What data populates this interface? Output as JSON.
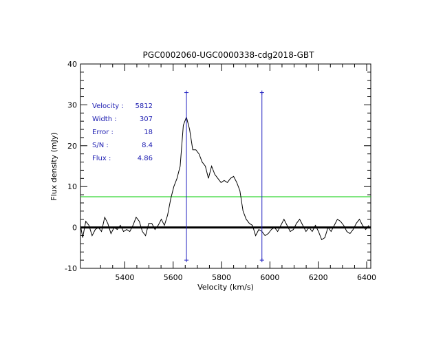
{
  "chart_data": {
    "type": "line",
    "title": "PGC0002060-UGC0000338-cdg2018-GBT",
    "xlabel": "Velocity (km/s)",
    "ylabel": "Flux density (mJy)",
    "xlim": [
      5217,
      6417
    ],
    "ylim": [
      -10,
      40
    ],
    "x_ticks": [
      5400,
      5600,
      5800,
      6000,
      6200,
      6400
    ],
    "y_ticks": [
      -10,
      0,
      10,
      20,
      30,
      40
    ],
    "x_tick_labels": [
      "5400",
      "5600",
      "5800",
      "6000",
      "6200",
      "6400"
    ],
    "y_tick_labels": [
      "-10",
      "0",
      "10",
      "20",
      "30",
      "40"
    ],
    "grid": false,
    "series": [
      {
        "color": "#000000",
        "x": [
          5217,
          5226,
          5239,
          5252,
          5265,
          5278,
          5291,
          5304,
          5317,
          5330,
          5343,
          5356,
          5369,
          5382,
          5395,
          5408,
          5421,
          5434,
          5447,
          5460,
          5473,
          5486,
          5499,
          5512,
          5525,
          5538,
          5551,
          5564,
          5577,
          5590,
          5603,
          5616,
          5629,
          5642,
          5655,
          5668,
          5681,
          5694,
          5707,
          5720,
          5733,
          5746,
          5759,
          5772,
          5785,
          5798,
          5811,
          5824,
          5837,
          5850,
          5863,
          5876,
          5889,
          5902,
          5915,
          5928,
          5941,
          5954,
          5967,
          5980,
          5993,
          6006,
          6019,
          6032,
          6045,
          6058,
          6071,
          6084,
          6097,
          6110,
          6123,
          6136,
          6149,
          6162,
          6175,
          6188,
          6201,
          6214,
          6227,
          6240,
          6253,
          6266,
          6279,
          6292,
          6305,
          6318,
          6331,
          6344,
          6357,
          6370,
          6383,
          6396,
          6409
        ],
        "y": [
          0.5,
          -2.5,
          1.5,
          0.5,
          -2,
          -0.5,
          0,
          -1,
          2.5,
          1,
          -1.5,
          0,
          -0.5,
          0.5,
          -1,
          -0.5,
          -1,
          0.5,
          2.5,
          1.5,
          -1,
          -2,
          1,
          1,
          -0.5,
          0.5,
          2,
          0.5,
          3,
          7,
          10,
          12,
          15,
          25,
          27,
          24,
          19,
          19,
          18,
          16,
          15,
          12,
          15,
          13,
          12,
          11,
          11.5,
          11,
          12,
          12.5,
          11,
          9,
          4,
          2,
          1,
          0.5,
          -2,
          -0.5,
          -1,
          -2,
          -1.5,
          -0.5,
          0,
          -1,
          0.5,
          2,
          0.5,
          -1,
          -0.5,
          1,
          2,
          0.5,
          -1,
          0,
          -1,
          0.5,
          -1,
          -3,
          -2.5,
          0,
          -1,
          0.5,
          2,
          1.5,
          0.5,
          -1,
          -1.5,
          -0.5,
          1,
          2,
          0.5,
          -0.5,
          0.5
        ]
      }
    ],
    "zero_line": {
      "y": 0,
      "color": "#000000"
    },
    "level_line": {
      "y": 7.5,
      "color": "#00cc00"
    },
    "markers": {
      "x": [
        5655,
        5967
      ],
      "color": "#2020c0",
      "y_from": -8,
      "y_to": 33
    },
    "annotations": [
      {
        "label": "Velocity :",
        "value": "5812"
      },
      {
        "label": "Width :",
        "value": "307"
      },
      {
        "label": "Error :",
        "value": "18"
      },
      {
        "label": "S/N :",
        "value": "8.4"
      },
      {
        "label": "Flux :",
        "value": "4.86"
      }
    ],
    "annotation_color": "#1a1ab0"
  }
}
